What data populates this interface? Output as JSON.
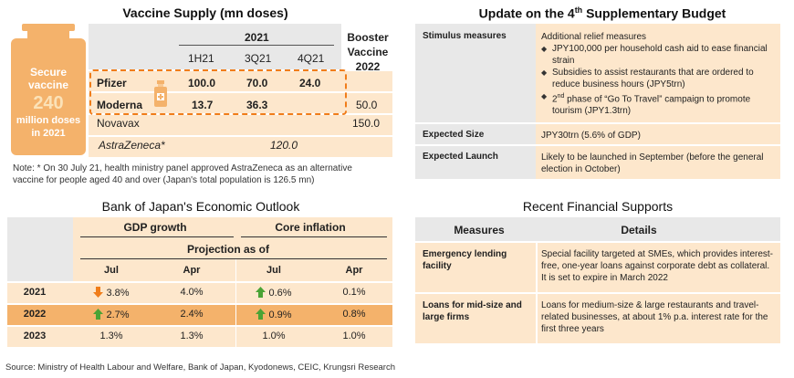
{
  "vaccine": {
    "title": "Vaccine Supply (mn doses)",
    "badge": {
      "line1": "Secure",
      "line2": "vaccine",
      "number": "240",
      "line3": "million doses",
      "line4": "in 2021"
    },
    "header_year": "2021",
    "header_booster": [
      "Booster",
      "Vaccine",
      "2022"
    ],
    "cols": [
      "1H21",
      "3Q21",
      "4Q21"
    ],
    "rows": [
      {
        "name": "Pfizer",
        "h1": "100.0",
        "q3": "70.0",
        "q4": "24.0",
        "booster": ""
      },
      {
        "name": "Moderna",
        "h1": "13.7",
        "q3": "36.3",
        "q4": "",
        "booster": "50.0"
      },
      {
        "name": "Novavax",
        "h1": "",
        "q3": "",
        "q4": "",
        "booster": "150.0"
      },
      {
        "name": "AstraZeneca*",
        "h1": "",
        "q3": "120.0",
        "q4": "",
        "booster": ""
      }
    ],
    "note_line1": "Note: * On 30 July 21, health ministry panel approved AstraZeneca as an alternative",
    "note_line2": "vaccine for people aged 40 and over  (Japan's total population is 126.5 mn)"
  },
  "budget": {
    "title_pre": "Update on the 4",
    "title_sup": "th",
    "title_post": " Supplementary Budget",
    "rows": {
      "stimulus_label": "Stimulus measures",
      "stimulus_intro": "Additional relief measures",
      "stimulus_b1": "JPY100,000 per household cash aid to ease financial strain",
      "stimulus_b2": "Subsidies to assist restaurants that are ordered to reduce business hours (JPY5trn)",
      "stimulus_b3_pre": "2",
      "stimulus_b3_sup": "nd",
      "stimulus_b3_post": " phase of “Go To Travel” campaign to promote tourism (JPY1.3trn)",
      "size_label": "Expected Size",
      "size_val": "JPY30trn (5.6% of GDP)",
      "launch_label": "Expected Launch",
      "launch_val": "Likely to be launched in September (before the general election in October)"
    }
  },
  "boj": {
    "title": "Bank of Japan's Economic Outlook",
    "head_gdp": "GDP growth",
    "head_core": "Core inflation",
    "projection": "Projection as of",
    "subcols": [
      "Jul",
      "Apr",
      "Jul",
      "Apr"
    ],
    "rows": [
      {
        "year": "2021",
        "gdp_jul": "3.8%",
        "gdp_jul_arrow": "down",
        "gdp_apr": "4.0%",
        "core_jul": "0.6%",
        "core_jul_arrow": "up",
        "core_apr": "0.1%"
      },
      {
        "year": "2022",
        "gdp_jul": "2.7%",
        "gdp_jul_arrow": "up",
        "gdp_apr": "2.4%",
        "core_jul": "0.9%",
        "core_jul_arrow": "up",
        "core_apr": "0.8%"
      },
      {
        "year": "2023",
        "gdp_jul": "1.3%",
        "gdp_jul_arrow": "",
        "gdp_apr": "1.3%",
        "core_jul": "1.0%",
        "core_jul_arrow": "",
        "core_apr": "1.0%"
      }
    ],
    "source": "Source: Ministry of Health Labour and Welfare, Bank of Japan, Kyodonews, CEIC, Krungsri Research"
  },
  "fin": {
    "title": "Recent Financial Supports",
    "head_measures": "Measures",
    "head_details": "Details",
    "rows": [
      {
        "label": "Emergency lending facility",
        "val": "Special facility targeted at SMEs, which provides interest-free, one-year loans against corporate debt as collateral. It is set to expire in March 2022"
      },
      {
        "label": "Loans for mid-size and large firms",
        "val": "Loans for medium-size & large restaurants and travel-related businesses, at about 1% p.a. interest rate for the first three years"
      }
    ]
  },
  "colors": {
    "orange_dark": "#f07d1a",
    "orange_light": "#fde7cc",
    "grey_header": "#e8e8e8",
    "arrow_up": "#4aa335",
    "arrow_down": "#f07d1a"
  }
}
